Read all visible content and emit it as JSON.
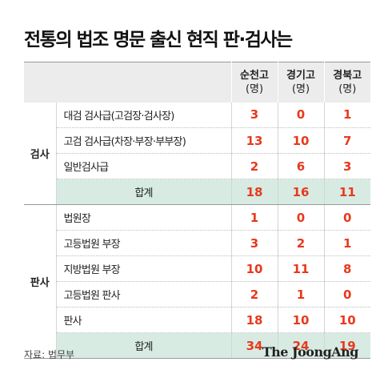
{
  "title": "전통의 법조 명문 출신 현직 판·검사는",
  "columns": [
    {
      "name": "순천고",
      "unit": "(명)"
    },
    {
      "name": "경기고",
      "unit": "(명)"
    },
    {
      "name": "경북고",
      "unit": "(명)"
    }
  ],
  "groups": {
    "prosecutors": {
      "label": "검사",
      "rows": [
        {
          "label": "대검 검사급(고검장·검사장)",
          "values": [
            "3",
            "0",
            "1"
          ]
        },
        {
          "label": "고검 검사급(차장·부장·부부장)",
          "values": [
            "13",
            "10",
            "7"
          ]
        },
        {
          "label": "일반검사급",
          "values": [
            "2",
            "6",
            "3"
          ]
        }
      ],
      "total": {
        "label": "합계",
        "values": [
          "18",
          "16",
          "11"
        ]
      }
    },
    "judges": {
      "label": "판사",
      "rows": [
        {
          "label": "법원장",
          "values": [
            "1",
            "0",
            "0"
          ]
        },
        {
          "label": "고등법원 부장",
          "values": [
            "3",
            "2",
            "1"
          ]
        },
        {
          "label": "지방법원 부장",
          "values": [
            "10",
            "11",
            "8"
          ]
        },
        {
          "label": "고등법원 판사",
          "values": [
            "2",
            "1",
            "0"
          ]
        },
        {
          "label": "판사",
          "values": [
            "18",
            "10",
            "10"
          ]
        }
      ],
      "total": {
        "label": "합계",
        "values": [
          "34",
          "24",
          "19"
        ]
      }
    }
  },
  "source": "자료: 법무부",
  "logo": "The JoongAng",
  "colors": {
    "value": "#e8391d",
    "header_bg": "#ececec",
    "total_bg": "#d7ebe3"
  }
}
